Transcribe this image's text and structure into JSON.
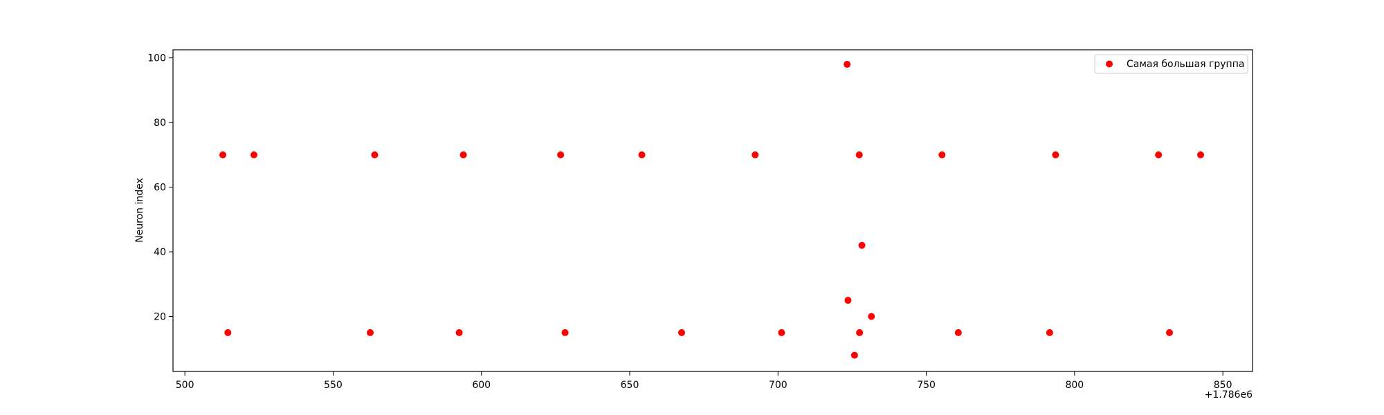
{
  "chart_data": {
    "type": "scatter",
    "title": "",
    "xlabel": "",
    "ylabel": "Neuron index",
    "x_offset_label": "+1.786e6",
    "xlim": [
      496,
      860
    ],
    "ylim": [
      3,
      102.5
    ],
    "x_ticks": [
      500,
      550,
      600,
      650,
      700,
      750,
      800,
      850
    ],
    "y_ticks": [
      20,
      40,
      60,
      80,
      100
    ],
    "grid": false,
    "legend_position": "top-right",
    "series": [
      {
        "name": "Самая большая группа",
        "color": "#ff0000",
        "points": [
          {
            "x": 512.8,
            "y": 70
          },
          {
            "x": 523.3,
            "y": 70
          },
          {
            "x": 564.0,
            "y": 70
          },
          {
            "x": 593.9,
            "y": 70
          },
          {
            "x": 626.7,
            "y": 70
          },
          {
            "x": 654.1,
            "y": 70
          },
          {
            "x": 692.3,
            "y": 70
          },
          {
            "x": 727.4,
            "y": 70
          },
          {
            "x": 755.3,
            "y": 70
          },
          {
            "x": 793.6,
            "y": 70
          },
          {
            "x": 828.3,
            "y": 70
          },
          {
            "x": 842.5,
            "y": 70
          },
          {
            "x": 723.3,
            "y": 98
          },
          {
            "x": 728.3,
            "y": 42
          },
          {
            "x": 723.6,
            "y": 25
          },
          {
            "x": 731.5,
            "y": 20
          },
          {
            "x": 514.5,
            "y": 15
          },
          {
            "x": 562.5,
            "y": 15
          },
          {
            "x": 592.5,
            "y": 15
          },
          {
            "x": 628.2,
            "y": 15
          },
          {
            "x": 667.5,
            "y": 15
          },
          {
            "x": 701.2,
            "y": 15
          },
          {
            "x": 727.5,
            "y": 15
          },
          {
            "x": 760.8,
            "y": 15
          },
          {
            "x": 791.6,
            "y": 15
          },
          {
            "x": 832.0,
            "y": 15
          },
          {
            "x": 725.8,
            "y": 8
          }
        ]
      }
    ]
  }
}
